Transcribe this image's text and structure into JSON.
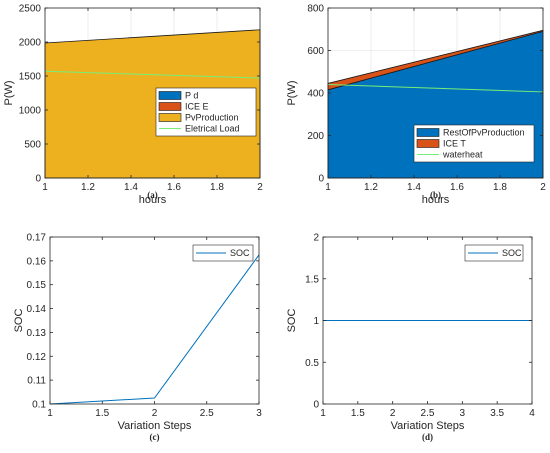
{
  "chart_data": [
    {
      "type": "area",
      "panel": "(a)",
      "xlabel": "hours",
      "ylabel": "P(W)",
      "xlim": [
        1,
        2
      ],
      "ylim": [
        0,
        2500
      ],
      "xticks": [
        "1",
        "1.2",
        "1.4",
        "1.6",
        "1.8",
        "2"
      ],
      "yticks": [
        "0",
        "500",
        "1000",
        "1500",
        "2000",
        "2500"
      ],
      "grid": true,
      "legend_position": "right",
      "x": [
        1,
        2
      ],
      "series": [
        {
          "name": "P d",
          "kind": "area",
          "color": "#0072bd",
          "values": [
            0,
            0
          ]
        },
        {
          "name": "ICE E",
          "kind": "area",
          "color": "#d95319",
          "values": [
            0,
            0
          ]
        },
        {
          "name": "PvProduction",
          "kind": "area",
          "color": "#edb120",
          "values": [
            1985,
            2180
          ]
        },
        {
          "name": "Eletrical Load",
          "kind": "line",
          "color": "#77ee77",
          "values": [
            1570,
            1470
          ]
        }
      ]
    },
    {
      "type": "area",
      "panel": "(b)",
      "xlabel": "hours",
      "ylabel": "P(W)",
      "xlim": [
        1,
        2
      ],
      "ylim": [
        0,
        800
      ],
      "xticks": [
        "1",
        "1.2",
        "1.4",
        "1.6",
        "1.8",
        "2"
      ],
      "yticks": [
        "0",
        "200",
        "400",
        "600",
        "800"
      ],
      "grid": true,
      "legend_position": "lower-right",
      "x": [
        1,
        2
      ],
      "series": [
        {
          "name": "RestOfPvProduction",
          "kind": "area",
          "color": "#0072bd",
          "values": [
            415,
            690
          ]
        },
        {
          "name": "ICE T",
          "kind": "area",
          "color": "#d95319",
          "values": [
            30,
            5
          ]
        },
        {
          "name": "waterheat",
          "kind": "line",
          "color": "#77ee77",
          "values": [
            440,
            405
          ]
        }
      ]
    },
    {
      "type": "line",
      "panel": "(c)",
      "xlabel": "Variation Steps",
      "ylabel": "SOC",
      "xlim": [
        1,
        3
      ],
      "ylim": [
        0.1,
        0.17
      ],
      "xticks": [
        "1",
        "1.5",
        "2",
        "2.5",
        "3"
      ],
      "yticks": [
        "0.1",
        "0.11",
        "0.12",
        "0.13",
        "0.14",
        "0.15",
        "0.16",
        "0.17"
      ],
      "grid": false,
      "legend_position": "top-right",
      "x": [
        1,
        2,
        3
      ],
      "series": [
        {
          "name": "SOC",
          "color": "#0072bd",
          "values": [
            0.1,
            0.1025,
            0.1625
          ]
        }
      ]
    },
    {
      "type": "line",
      "panel": "(d)",
      "xlabel": "Variation Steps",
      "ylabel": "SOC",
      "xlim": [
        1,
        4
      ],
      "ylim": [
        0,
        2
      ],
      "xticks": [
        "1",
        "1.5",
        "2",
        "2.5",
        "3",
        "3.5",
        "4"
      ],
      "yticks": [
        "0",
        "0.5",
        "1",
        "1.5",
        "2"
      ],
      "grid": false,
      "legend_position": "top-right",
      "x": [
        1,
        2,
        3,
        4
      ],
      "series": [
        {
          "name": "SOC",
          "color": "#0072bd",
          "values": [
            1,
            1,
            1,
            1
          ]
        }
      ]
    }
  ]
}
